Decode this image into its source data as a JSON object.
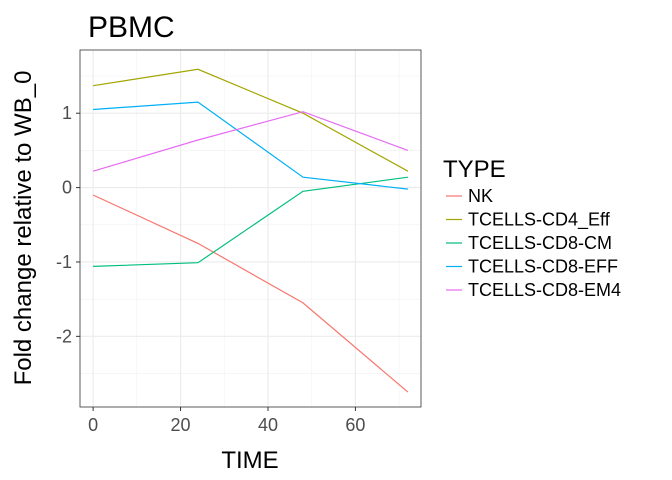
{
  "chart_data": {
    "type": "line",
    "title": "PBMC",
    "xlabel": "TIME",
    "ylabel": "Fold change relative to WB_0",
    "xlim": [
      -3,
      75
    ],
    "ylim": [
      -2.95,
      1.85
    ],
    "xticks": [
      0,
      20,
      40,
      60
    ],
    "yticks": [
      -2,
      -1,
      0,
      1
    ],
    "x_tick_labels": [
      "0",
      "20",
      "40",
      "60"
    ],
    "y_tick_labels": [
      "-2",
      "-1",
      "0",
      "1"
    ],
    "grid": true,
    "legend": {
      "title": "TYPE",
      "position": "right"
    },
    "x": [
      0,
      24,
      48,
      72
    ],
    "series": [
      {
        "name": "NK",
        "color": "#F8766D",
        "values": [
          -0.1,
          -0.75,
          -1.55,
          -2.75
        ]
      },
      {
        "name": "TCELLS-CD4_Eff",
        "color": "#A3A500",
        "values": [
          1.37,
          1.59,
          1.0,
          0.22
        ]
      },
      {
        "name": "TCELLS-CD8-CM",
        "color": "#00BF7D",
        "values": [
          -1.06,
          -1.01,
          -0.05,
          0.14
        ]
      },
      {
        "name": "TCELLS-CD8-EFF",
        "color": "#00B0F6",
        "values": [
          1.05,
          1.15,
          0.14,
          -0.02
        ]
      },
      {
        "name": "TCELLS-CD8-EM4",
        "color": "#E76BF3",
        "values": [
          0.22,
          0.64,
          1.02,
          0.5
        ]
      }
    ]
  }
}
